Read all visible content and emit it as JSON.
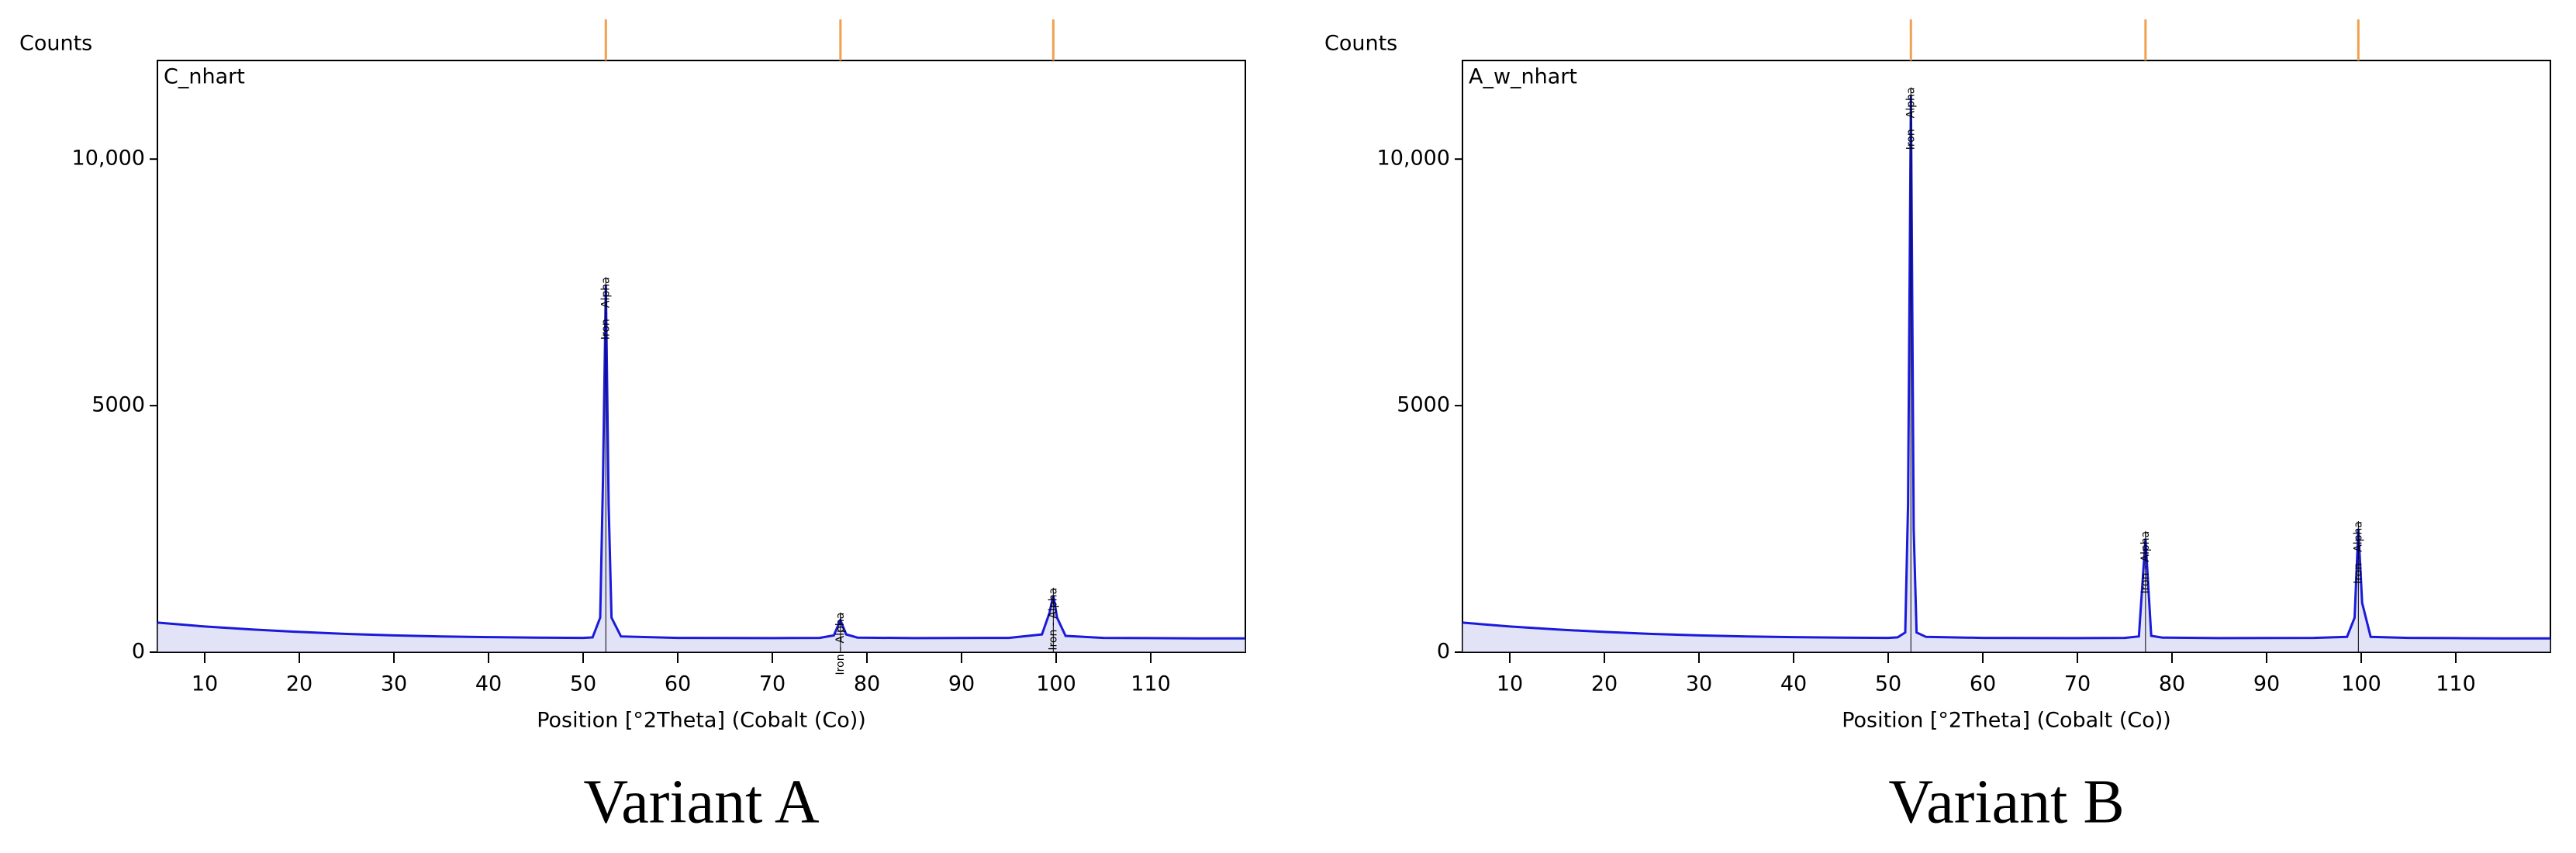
{
  "chart_data": [
    {
      "type": "line",
      "title": "C_nhart",
      "ylabel": "Counts",
      "xlabel": "Position [°2Theta] (Cobalt (Co))",
      "caption": "Variant A",
      "xlim": [
        5,
        120
      ],
      "xticks": [
        10,
        20,
        30,
        40,
        50,
        60,
        70,
        80,
        90,
        100,
        110
      ],
      "ylim": [
        0,
        12000
      ],
      "yticks": [
        0,
        5000,
        {
          "value": 10000,
          "label": "10,000"
        }
      ],
      "x": [
        5,
        10,
        15,
        20,
        25,
        30,
        35,
        40,
        45,
        50,
        51,
        51.8,
        52.1,
        52.4,
        52.7,
        53,
        54,
        60,
        70,
        75,
        76.5,
        77.2,
        77.8,
        79,
        85,
        95,
        98.5,
        99.3,
        99.7,
        100.1,
        101,
        105,
        110,
        115,
        120
      ],
      "series": [
        {
          "color": "#1a1adb",
          "values": [
            600,
            520,
            460,
            410,
            370,
            340,
            320,
            305,
            295,
            290,
            300,
            700,
            3500,
            7450,
            3000,
            700,
            320,
            290,
            285,
            290,
            340,
            650,
            360,
            295,
            285,
            290,
            360,
            800,
            1150,
            700,
            330,
            290,
            285,
            280,
            280
          ]
        }
      ],
      "reference_peaks": [
        52.4,
        77.2,
        99.7
      ],
      "reference_color": "#f0a050",
      "peak_labels": [
        {
          "text": "Iron - Alpha",
          "x": 52.4
        },
        {
          "text": "Iron - Alpha",
          "x": 77.2
        },
        {
          "text": "Iron - Alpha",
          "x": 99.7
        }
      ]
    },
    {
      "type": "line",
      "title": "A_w_nhart",
      "ylabel": "Counts",
      "xlabel": "Position [°2Theta] (Cobalt (Co))",
      "caption": "Variant B",
      "xlim": [
        5,
        120
      ],
      "xticks": [
        10,
        20,
        30,
        40,
        50,
        60,
        70,
        80,
        90,
        100,
        110
      ],
      "ylim": [
        0,
        12000
      ],
      "yticks": [
        0,
        5000,
        {
          "value": 10000,
          "label": "10,000"
        }
      ],
      "x": [
        5,
        10,
        15,
        20,
        25,
        30,
        35,
        40,
        45,
        50,
        51,
        51.8,
        52.1,
        52.4,
        52.7,
        53,
        54,
        60,
        70,
        75,
        76.5,
        77.2,
        77.8,
        79,
        85,
        95,
        98.5,
        99.3,
        99.7,
        100.1,
        101,
        105,
        110,
        115,
        120
      ],
      "series": [
        {
          "color": "#1a1adb",
          "values": [
            600,
            520,
            460,
            410,
            370,
            340,
            320,
            305,
            295,
            290,
            300,
            400,
            3000,
            11300,
            2500,
            400,
            310,
            290,
            285,
            290,
            320,
            2300,
            330,
            295,
            285,
            290,
            310,
            700,
            2500,
            1000,
            310,
            290,
            285,
            280,
            280
          ]
        }
      ],
      "reference_peaks": [
        52.4,
        77.2,
        99.7
      ],
      "reference_color": "#f0a050",
      "peak_labels": [
        {
          "text": "Iron - Alpha",
          "x": 52.4
        },
        {
          "text": "Iron - Alpha",
          "x": 77.2
        },
        {
          "text": "Iron - Alpha",
          "x": 99.7
        }
      ]
    }
  ]
}
